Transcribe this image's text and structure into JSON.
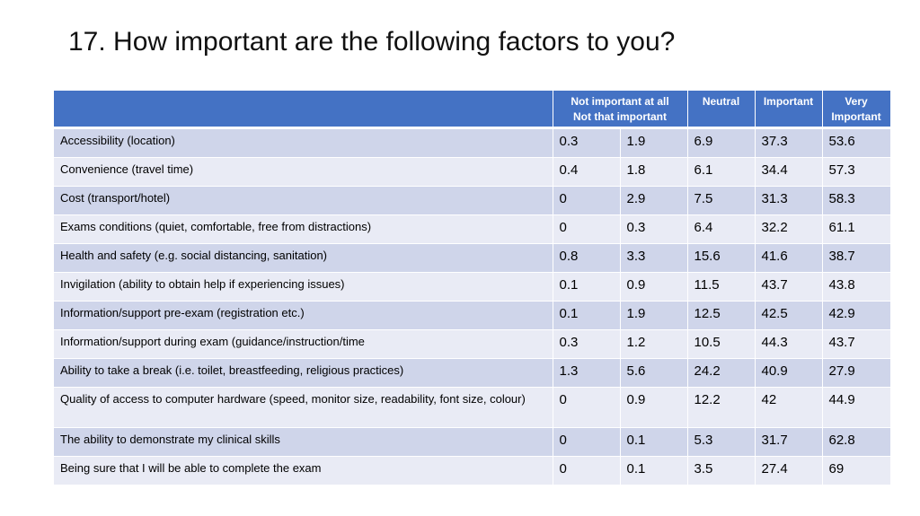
{
  "slide": {
    "title": "17. How important are the following factors to you?"
  },
  "table": {
    "headers": [
      "",
      "Not important at all",
      "Not that important",
      "Neutral",
      "Important",
      "Very Important"
    ],
    "header_display": {
      "not_important_line1": "Not important at all",
      "not_important_line2": "Not that important",
      "neutral": "Neutral",
      "important": "Important",
      "very_important_line1": "Very",
      "very_important_line2": "Important"
    },
    "rows": [
      {
        "label": "Accessibility (location)",
        "values": [
          "0.3",
          "1.9",
          "6.9",
          "37.3",
          "53.6"
        ]
      },
      {
        "label": "Convenience (travel time)",
        "values": [
          "0.4",
          "1.8",
          "6.1",
          "34.4",
          "57.3"
        ]
      },
      {
        "label": "Cost (transport/hotel)",
        "values": [
          "0",
          "2.9",
          "7.5",
          "31.3",
          "58.3"
        ]
      },
      {
        "label": "Exams conditions (quiet, comfortable, free from distractions)",
        "values": [
          "0",
          "0.3",
          "6.4",
          "32.2",
          "61.1"
        ]
      },
      {
        "label": "Health and safety (e.g. social distancing, sanitation)",
        "values": [
          "0.8",
          "3.3",
          "15.6",
          "41.6",
          "38.7"
        ]
      },
      {
        "label": "Invigilation (ability to obtain help if experiencing issues)",
        "values": [
          "0.1",
          "0.9",
          "11.5",
          "43.7",
          "43.8"
        ]
      },
      {
        "label": "Information/support pre-exam (registration etc.)",
        "values": [
          "0.1",
          "1.9",
          "12.5",
          "42.5",
          "42.9"
        ]
      },
      {
        "label": "Information/support during exam (guidance/instruction/time",
        "values": [
          "0.3",
          "1.2",
          "10.5",
          "44.3",
          "43.7"
        ]
      },
      {
        "label": "Ability to take a break (i.e. toilet, breastfeeding, religious practices)",
        "values": [
          "1.3",
          "5.6",
          "24.2",
          "40.9",
          "27.9"
        ]
      },
      {
        "label": "Quality of access to computer hardware (speed, monitor size, readability, font size, colour)",
        "values": [
          "0",
          "0.9",
          "12.2",
          "42",
          "44.9"
        ]
      },
      {
        "label": "The ability to demonstrate my clinical skills",
        "values": [
          "0",
          "0.1",
          "5.3",
          "31.7",
          "62.8"
        ]
      },
      {
        "label": "Being sure that I will be able to complete the exam",
        "values": [
          "0",
          "0.1",
          "3.5",
          "27.4",
          "69"
        ]
      }
    ]
  },
  "colors": {
    "header_bg": "#4472c4",
    "row_dark": "#cfd5ea",
    "row_light": "#e9ebf5"
  }
}
